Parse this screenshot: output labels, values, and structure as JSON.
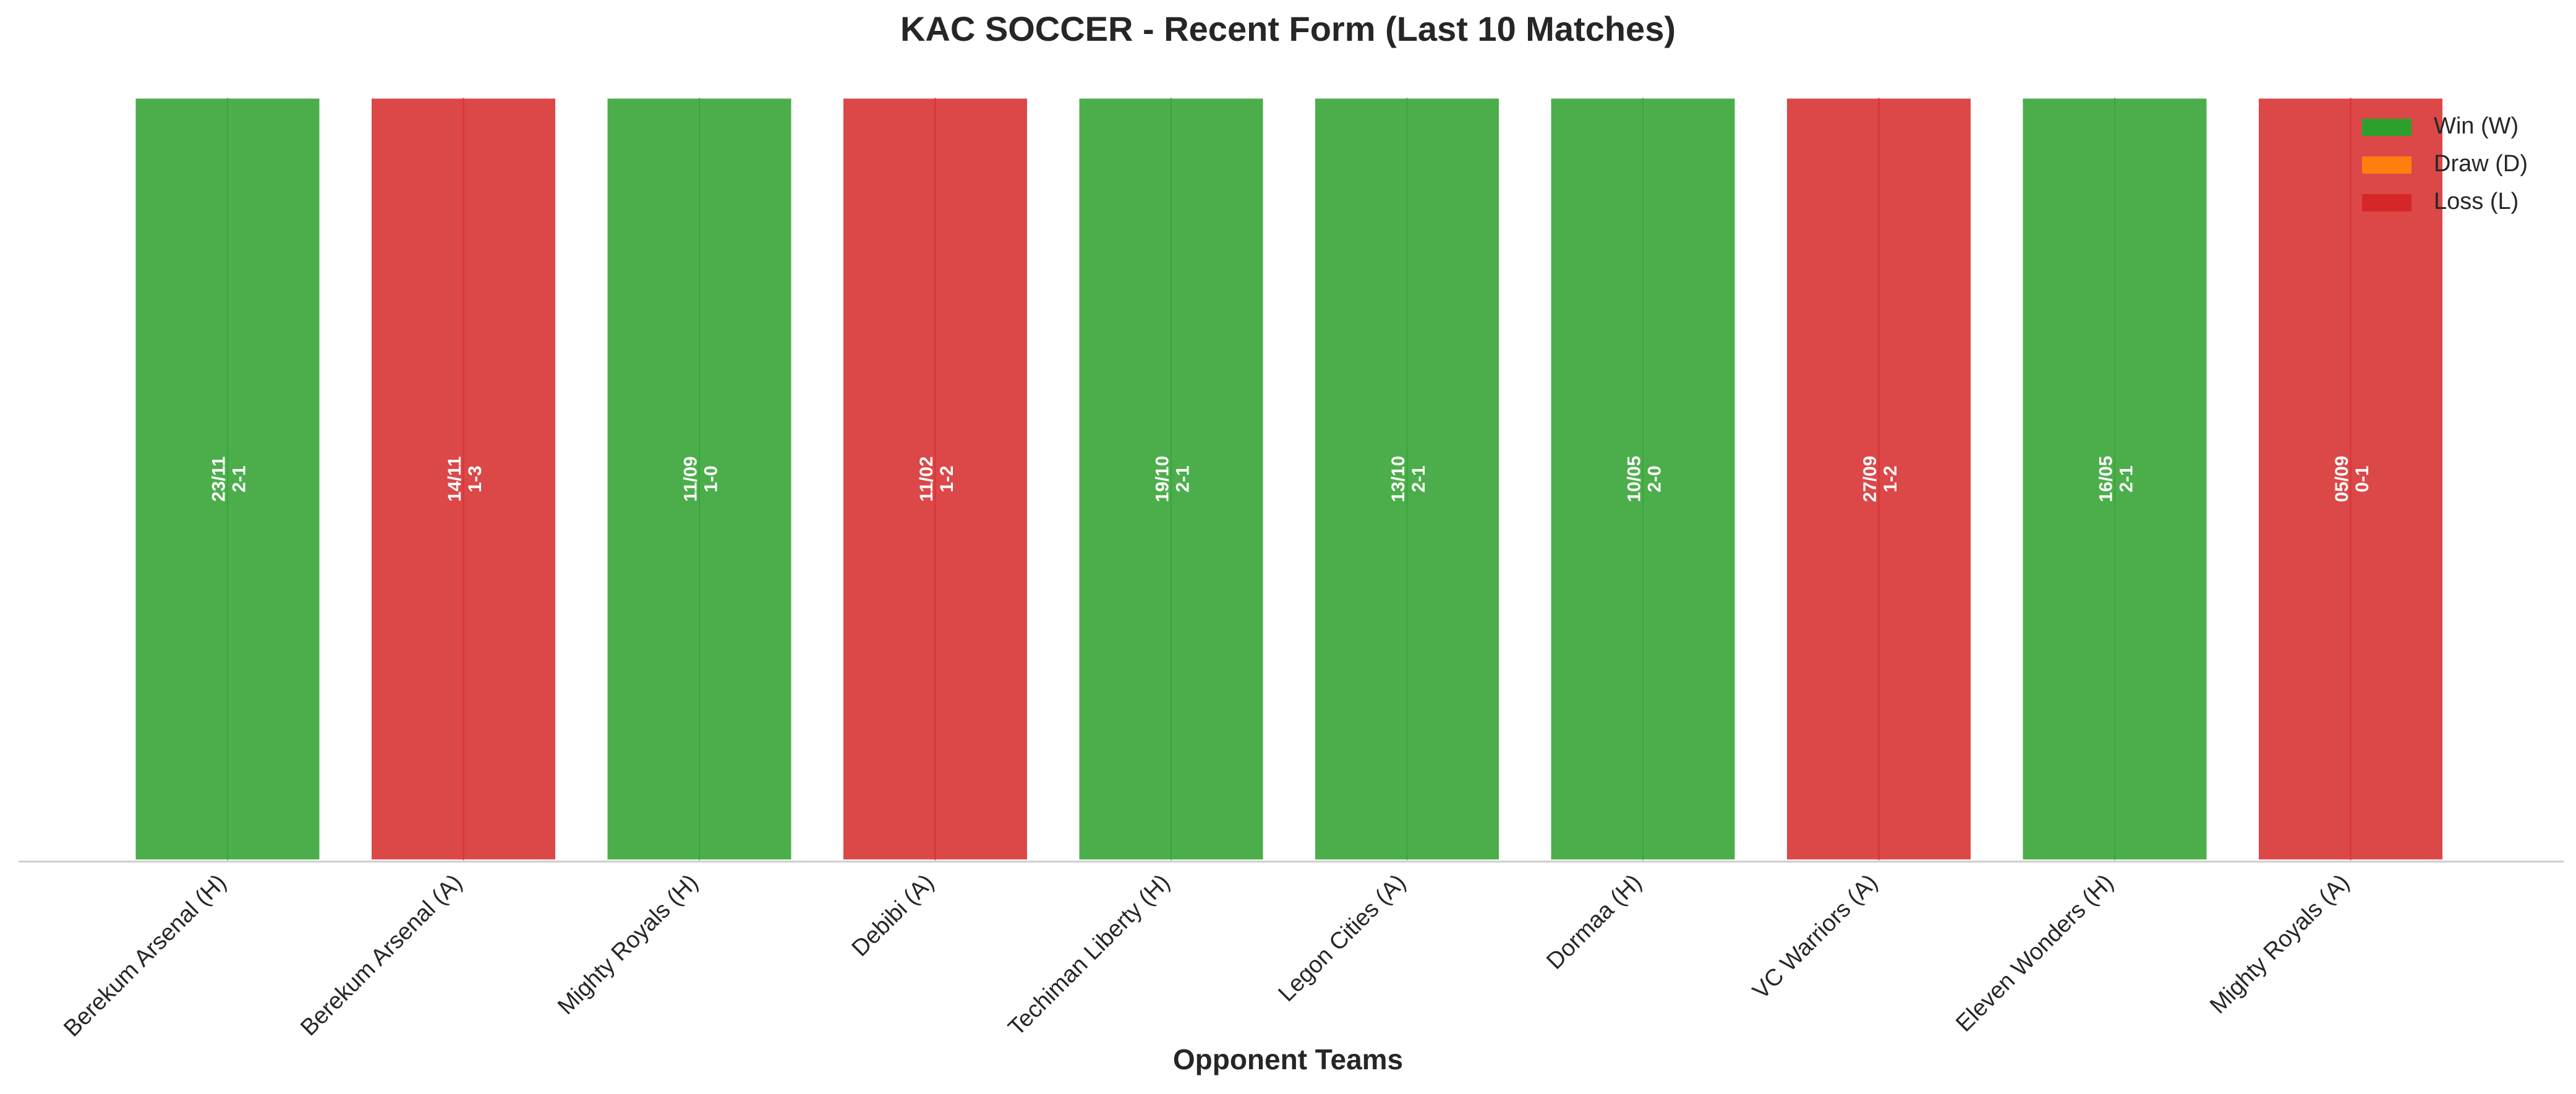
{
  "chart_data": {
    "type": "bar",
    "title": "KAC SOCCER - Recent Form (Last 10 Matches)",
    "xlabel": "Opponent Teams",
    "ylabel": "",
    "grid": false,
    "legend_position": "top-right",
    "legend": [
      {
        "name": "Win (W)",
        "color": "#2ca02c"
      },
      {
        "name": "Draw (D)",
        "color": "#ff7f0e"
      },
      {
        "name": "Loss (L)",
        "color": "#d62728"
      }
    ],
    "categories": [
      "Berekum Arsenal (H)",
      "Berekum Arsenal (A)",
      "Mighty Royals (H)",
      "Debibi (A)",
      "Techiman Liberty (H)",
      "Legon Cities (A)",
      "Dormaa (H)",
      "VC Warriors (A)",
      "Eleven Wonders (H)",
      "Mighty Royals (A)"
    ],
    "results": [
      "W",
      "L",
      "W",
      "L",
      "W",
      "W",
      "W",
      "L",
      "W",
      "L"
    ],
    "dates": [
      "23/11",
      "14/11",
      "11/09",
      "11/02",
      "19/10",
      "13/10",
      "10/05",
      "27/09",
      "16/05",
      "05/09"
    ],
    "scores": [
      "2-1",
      "1-3",
      "1-0",
      "1-2",
      "2-1",
      "2-1",
      "2-0",
      "1-2",
      "2-1",
      "0-1"
    ],
    "values": [
      1,
      1,
      1,
      1,
      1,
      1,
      1,
      1,
      1,
      1
    ]
  }
}
